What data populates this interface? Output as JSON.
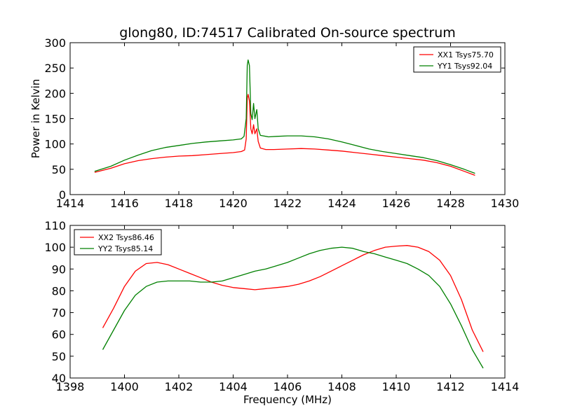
{
  "title": "glong80, ID:74517 Calibrated On-source spectrum",
  "chart_data": [
    {
      "type": "line",
      "ylabel": "Power in Kelvin",
      "xlabel": "",
      "xlim": [
        1414,
        1430
      ],
      "ylim": [
        0,
        300
      ],
      "xticks": [
        1414,
        1416,
        1418,
        1420,
        1422,
        1424,
        1426,
        1428,
        1430
      ],
      "yticks": [
        0,
        50,
        100,
        150,
        200,
        250,
        300
      ],
      "legend_position": "top-right",
      "grid": false,
      "series": [
        {
          "name": "XX1 Tsys75.70",
          "color": "#ff0000",
          "points": [
            [
              1414.9,
              44
            ],
            [
              1415.5,
              52
            ],
            [
              1416,
              61
            ],
            [
              1416.5,
              67
            ],
            [
              1417,
              71
            ],
            [
              1417.5,
              74
            ],
            [
              1418,
              76
            ],
            [
              1418.5,
              77
            ],
            [
              1419,
              79
            ],
            [
              1419.5,
              81
            ],
            [
              1420,
              83
            ],
            [
              1420.3,
              85
            ],
            [
              1420.42,
              88
            ],
            [
              1420.48,
              110
            ],
            [
              1420.52,
              190
            ],
            [
              1420.55,
              198
            ],
            [
              1420.6,
              185
            ],
            [
              1420.65,
              130
            ],
            [
              1420.7,
              120
            ],
            [
              1420.75,
              138
            ],
            [
              1420.8,
              120
            ],
            [
              1420.87,
              130
            ],
            [
              1420.92,
              105
            ],
            [
              1421,
              92
            ],
            [
              1421.2,
              89
            ],
            [
              1421.5,
              89
            ],
            [
              1422,
              90
            ],
            [
              1422.5,
              91
            ],
            [
              1423,
              90
            ],
            [
              1423.5,
              88
            ],
            [
              1424,
              86
            ],
            [
              1424.5,
              83
            ],
            [
              1425,
              80
            ],
            [
              1425.5,
              77
            ],
            [
              1426,
              74
            ],
            [
              1426.5,
              71
            ],
            [
              1427,
              68
            ],
            [
              1427.5,
              63
            ],
            [
              1428,
              56
            ],
            [
              1428.5,
              46
            ],
            [
              1428.9,
              38
            ]
          ]
        },
        {
          "name": "YY1 Tsys92.04",
          "color": "#008000",
          "points": [
            [
              1414.9,
              46
            ],
            [
              1415.5,
              56
            ],
            [
              1416,
              68
            ],
            [
              1416.5,
              78
            ],
            [
              1417,
              87
            ],
            [
              1417.5,
              93
            ],
            [
              1418,
              97
            ],
            [
              1418.5,
              101
            ],
            [
              1419,
              104
            ],
            [
              1419.5,
              106
            ],
            [
              1420,
              108
            ],
            [
              1420.3,
              110
            ],
            [
              1420.4,
              115
            ],
            [
              1420.48,
              150
            ],
            [
              1420.52,
              255
            ],
            [
              1420.55,
              266
            ],
            [
              1420.6,
              255
            ],
            [
              1420.65,
              160
            ],
            [
              1420.7,
              148
            ],
            [
              1420.75,
              180
            ],
            [
              1420.8,
              150
            ],
            [
              1420.87,
              168
            ],
            [
              1420.92,
              130
            ],
            [
              1421,
              117
            ],
            [
              1421.3,
              114
            ],
            [
              1421.6,
              115
            ],
            [
              1422,
              116
            ],
            [
              1422.5,
              116
            ],
            [
              1423,
              114
            ],
            [
              1423.5,
              110
            ],
            [
              1424,
              104
            ],
            [
              1424.5,
              97
            ],
            [
              1425,
              90
            ],
            [
              1425.5,
              85
            ],
            [
              1426,
              81
            ],
            [
              1426.5,
              77
            ],
            [
              1427,
              73
            ],
            [
              1427.5,
              67
            ],
            [
              1428,
              59
            ],
            [
              1428.5,
              50
            ],
            [
              1428.9,
              42
            ]
          ]
        }
      ]
    },
    {
      "type": "line",
      "ylabel": "",
      "xlabel": "Frequency (MHz)",
      "xlim": [
        1398,
        1414
      ],
      "ylim": [
        40,
        110
      ],
      "xticks": [
        1398,
        1400,
        1402,
        1404,
        1406,
        1408,
        1410,
        1412,
        1414
      ],
      "yticks": [
        40,
        50,
        60,
        70,
        80,
        90,
        100,
        110
      ],
      "legend_position": "top-left",
      "grid": false,
      "series": [
        {
          "name": "XX2 Tsys86.46",
          "color": "#ff0000",
          "points": [
            [
              1399.2,
              63
            ],
            [
              1399.6,
              72
            ],
            [
              1400,
              82
            ],
            [
              1400.4,
              89
            ],
            [
              1400.8,
              92.5
            ],
            [
              1401.2,
              93
            ],
            [
              1401.6,
              92
            ],
            [
              1402,
              90
            ],
            [
              1402.4,
              88
            ],
            [
              1402.8,
              86
            ],
            [
              1403.2,
              84
            ],
            [
              1403.6,
              82.5
            ],
            [
              1404,
              81.5
            ],
            [
              1404.4,
              81
            ],
            [
              1404.8,
              80.5
            ],
            [
              1405.2,
              81
            ],
            [
              1405.6,
              81.5
            ],
            [
              1406,
              82
            ],
            [
              1406.4,
              83
            ],
            [
              1406.8,
              84.5
            ],
            [
              1407.2,
              86.5
            ],
            [
              1407.6,
              89
            ],
            [
              1408,
              91.5
            ],
            [
              1408.4,
              94
            ],
            [
              1408.8,
              96.5
            ],
            [
              1409.2,
              98.5
            ],
            [
              1409.6,
              100
            ],
            [
              1410,
              100.5
            ],
            [
              1410.4,
              100.8
            ],
            [
              1410.8,
              100
            ],
            [
              1411.2,
              98
            ],
            [
              1411.6,
              94
            ],
            [
              1412,
              87
            ],
            [
              1412.4,
              76
            ],
            [
              1412.8,
              62
            ],
            [
              1413.2,
              52
            ]
          ]
        },
        {
          "name": "YY2 Tsys85.14",
          "color": "#008000",
          "points": [
            [
              1399.2,
              53
            ],
            [
              1399.6,
              62
            ],
            [
              1400,
              71
            ],
            [
              1400.4,
              78
            ],
            [
              1400.8,
              82
            ],
            [
              1401.2,
              84
            ],
            [
              1401.6,
              84.5
            ],
            [
              1402,
              84.5
            ],
            [
              1402.4,
              84.5
            ],
            [
              1402.8,
              84
            ],
            [
              1403.2,
              84
            ],
            [
              1403.6,
              84.5
            ],
            [
              1404,
              86
            ],
            [
              1404.4,
              87.5
            ],
            [
              1404.8,
              89
            ],
            [
              1405.2,
              90
            ],
            [
              1405.6,
              91.5
            ],
            [
              1406,
              93
            ],
            [
              1406.4,
              95
            ],
            [
              1406.8,
              97
            ],
            [
              1407.2,
              98.5
            ],
            [
              1407.6,
              99.5
            ],
            [
              1408,
              100
            ],
            [
              1408.4,
              99.5
            ],
            [
              1408.8,
              98
            ],
            [
              1409.2,
              97
            ],
            [
              1409.6,
              95.5
            ],
            [
              1410,
              94
            ],
            [
              1410.4,
              92.5
            ],
            [
              1410.8,
              90
            ],
            [
              1411.2,
              87
            ],
            [
              1411.6,
              82
            ],
            [
              1412,
              74
            ],
            [
              1412.4,
              64
            ],
            [
              1412.8,
              53
            ],
            [
              1413.2,
              44.5
            ]
          ]
        }
      ]
    }
  ]
}
